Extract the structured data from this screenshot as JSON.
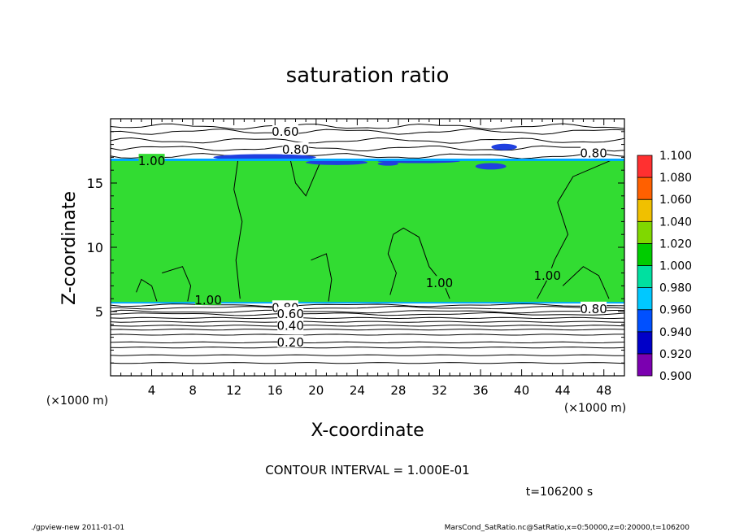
{
  "chart_data": {
    "type": "heatmap",
    "title": "saturation ratio",
    "xlabel": "X-coordinate",
    "ylabel": "Z-coordinate",
    "x_unit_left": "(×1000 m)",
    "x_unit_right": "(×1000 m)",
    "xlim": [
      0,
      50
    ],
    "ylim": [
      0,
      20
    ],
    "x_ticks": [
      4,
      8,
      12,
      16,
      20,
      24,
      28,
      32,
      36,
      40,
      44,
      48
    ],
    "y_ticks": [
      5,
      10,
      15
    ],
    "contour_interval_label": "CONTOUR INTERVAL = 1.000E-01",
    "time_label": "t=106200 s",
    "contour_labels": [
      {
        "text": "0.60",
        "x": 17.0,
        "z": 19.0
      },
      {
        "text": "0.80",
        "x": 18.0,
        "z": 17.6
      },
      {
        "text": "1.00",
        "x": 4.0,
        "z": 16.7
      },
      {
        "text": "0.80",
        "x": 47.0,
        "z": 17.3
      },
      {
        "text": "1.00",
        "x": 32.0,
        "z": 7.2
      },
      {
        "text": "1.00",
        "x": 42.5,
        "z": 7.8
      },
      {
        "text": "1.00",
        "x": 9.5,
        "z": 5.9
      },
      {
        "text": "0.80",
        "x": 17.0,
        "z": 5.3
      },
      {
        "text": "0.60",
        "x": 17.5,
        "z": 4.8
      },
      {
        "text": "0.40",
        "x": 17.5,
        "z": 3.9
      },
      {
        "text": "0.20",
        "x": 17.5,
        "z": 2.6
      },
      {
        "text": "0.80",
        "x": 47.0,
        "z": 5.2
      }
    ],
    "saturated_layer_z": [
      5.7,
      16.8
    ],
    "colorbar": {
      "levels": [
        0.9,
        0.92,
        0.94,
        0.96,
        0.98,
        1.0,
        1.02,
        1.04,
        1.06,
        1.08,
        1.1
      ],
      "labels": [
        "1.100",
        "1.080",
        "1.060",
        "1.040",
        "1.020",
        "1.000",
        "0.980",
        "0.960",
        "0.940",
        "0.920",
        "0.900"
      ],
      "colors": [
        "#7b00b0",
        "#0000c8",
        "#0050ff",
        "#00c8ff",
        "#00e0a0",
        "#00cc00",
        "#80d800",
        "#f0c000",
        "#ff6000",
        "#ff3030",
        "#ff9090"
      ]
    },
    "colors": {
      "saturated_fill": "#32dc32",
      "undersaturated_fill": "#ffffff",
      "contour_line": "#000000"
    }
  },
  "footer": {
    "left": "./gpview-new   2011-01-01",
    "right": "MarsCond_SatRatio.nc@SatRatio,x=0:50000,z=0:20000,t=106200"
  }
}
